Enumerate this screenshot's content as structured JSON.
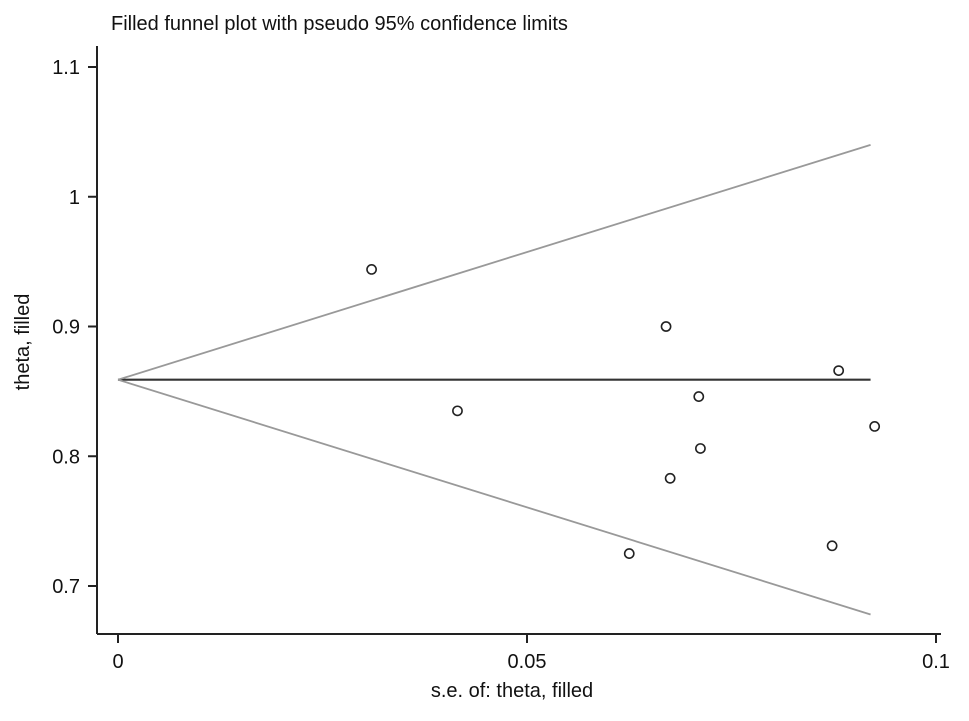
{
  "chart_data": {
    "type": "scatter",
    "title": "Filled funnel plot with pseudo 95% confidence limits",
    "xlabel": "s.e. of: theta, filled",
    "ylabel": "theta, filled",
    "xlim": [
      0,
      0.1
    ],
    "ylim": [
      0.68,
      1.12
    ],
    "x_ticks": [
      0,
      0.05,
      0.1
    ],
    "x_tick_labels": [
      "0",
      "0.05",
      "0.1"
    ],
    "y_ticks": [
      0.7,
      0.8,
      0.9,
      1,
      1.1
    ],
    "y_tick_labels": [
      "0.7",
      "0.8",
      "0.9",
      "1",
      "1.1"
    ],
    "grid": false,
    "pooled_estimate": 0.859,
    "funnel": {
      "se_max": 0.092,
      "upper_at_se_max": 1.04,
      "lower_at_se_max": 0.678
    },
    "points": [
      {
        "x": 0.031,
        "y": 0.944
      },
      {
        "x": 0.0415,
        "y": 0.835
      },
      {
        "x": 0.0625,
        "y": 0.725
      },
      {
        "x": 0.067,
        "y": 0.9
      },
      {
        "x": 0.0675,
        "y": 0.783
      },
      {
        "x": 0.071,
        "y": 0.846
      },
      {
        "x": 0.0712,
        "y": 0.806
      },
      {
        "x": 0.0873,
        "y": 0.731
      },
      {
        "x": 0.0881,
        "y": 0.866
      },
      {
        "x": 0.0925,
        "y": 0.823
      }
    ],
    "colors": {
      "axis": "#222222",
      "pooled_line": "#333333",
      "funnel_line": "#999999",
      "marker": "#222222"
    }
  }
}
